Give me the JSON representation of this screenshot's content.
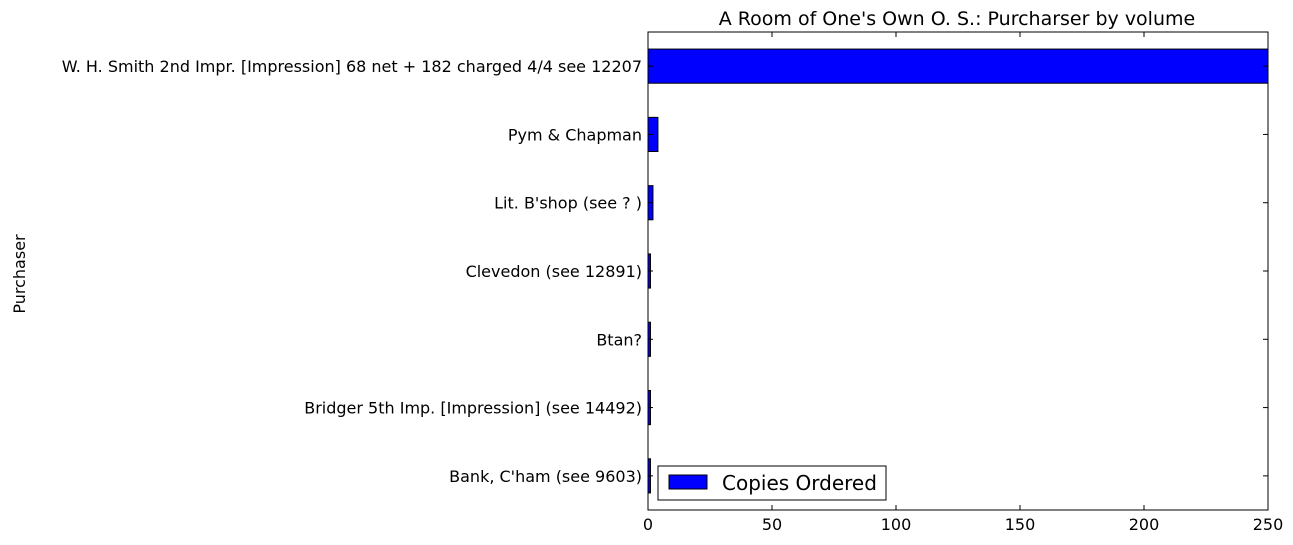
{
  "chart_data": {
    "type": "bar",
    "orientation": "horizontal",
    "title": "A Room of One's Own O. S.: Purcharser by volume",
    "xlabel": "",
    "ylabel": "Purchaser",
    "xlim": [
      0,
      250
    ],
    "xticks": [
      0,
      50,
      100,
      150,
      200,
      250
    ],
    "categories": [
      "Bank, C'ham (see 9603)",
      "Bridger 5th Imp. [Impression] (see 14492)",
      "Btan?",
      "Clevedon (see 12891)",
      "Lit. B'shop (see ? )",
      "Pym & Chapman",
      "W. H. Smith 2nd Impr. [Impression] 68 net + 182 charged 4/4 see 12207"
    ],
    "series": [
      {
        "name": "Copies Ordered",
        "values": [
          1,
          1,
          1,
          1,
          2,
          4,
          250
        ],
        "color": "#0000ff"
      }
    ],
    "legend": "lower-left",
    "grid": false
  }
}
